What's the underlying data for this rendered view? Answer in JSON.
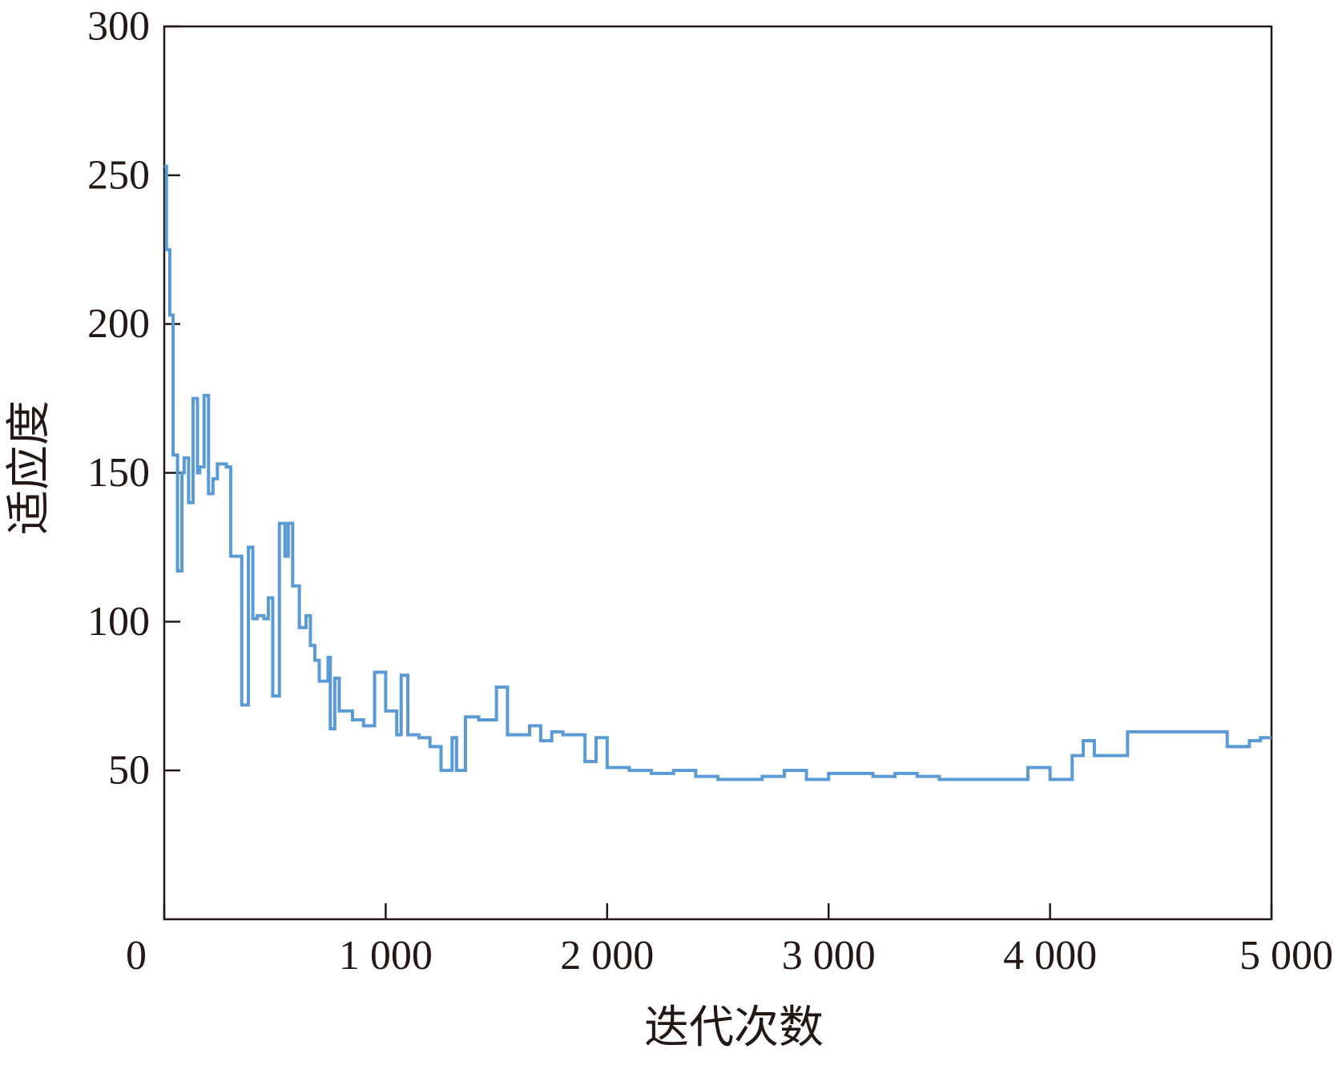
{
  "chart_data": {
    "type": "line",
    "title": "",
    "xlabel": "迭代次数",
    "ylabel": "适应度",
    "xlim": [
      0,
      5000
    ],
    "ylim": [
      0,
      300
    ],
    "x_ticks": [
      {
        "value": 0,
        "label": "0"
      },
      {
        "value": 1000,
        "label": "1 000"
      },
      {
        "value": 2000,
        "label": "2 000"
      },
      {
        "value": 3000,
        "label": "3 000"
      },
      {
        "value": 4000,
        "label": "4 000"
      },
      {
        "value": 5000,
        "label": "5 000"
      }
    ],
    "y_ticks": [
      {
        "value": 50,
        "label": "50"
      },
      {
        "value": 100,
        "label": "100"
      },
      {
        "value": 150,
        "label": "150"
      },
      {
        "value": 200,
        "label": "200"
      },
      {
        "value": 250,
        "label": "250"
      },
      {
        "value": 300,
        "label": "300"
      }
    ],
    "grid": false,
    "colors": {
      "series": "#5b9bd5",
      "axis": "#231815"
    },
    "series": [
      {
        "x": [
          0,
          10,
          25,
          40,
          40,
          60,
          80,
          90,
          110,
          130,
          150,
          160,
          180,
          200,
          220,
          240,
          260,
          280,
          300,
          350,
          380,
          400,
          420,
          450,
          470,
          490,
          520,
          545,
          560,
          580,
          610,
          640,
          660,
          680,
          700,
          740,
          750,
          770,
          790,
          810,
          850,
          900,
          950,
          1000,
          1050,
          1070,
          1100,
          1150,
          1200,
          1250,
          1300,
          1320,
          1360,
          1420,
          1500,
          1550,
          1600,
          1650,
          1700,
          1750,
          1800,
          1850,
          1900,
          1950,
          2000,
          2100,
          2200,
          2300,
          2400,
          2500,
          2600,
          2700,
          2800,
          2900,
          3000,
          3100,
          3200,
          3300,
          3400,
          3500,
          3600,
          3700,
          3800,
          3900,
          4000,
          4100,
          4150,
          4200,
          4300,
          4350,
          4400,
          4500,
          4600,
          4700,
          4800,
          4900,
          4950,
          5000
        ],
        "y": [
          253,
          225,
          203,
          156,
          156,
          117,
          150,
          155,
          140,
          175,
          150,
          152,
          176,
          143,
          148,
          153,
          153,
          152,
          122,
          72,
          125,
          101,
          102,
          101,
          108,
          75,
          133,
          122,
          133,
          112,
          98,
          102,
          92,
          87,
          80,
          88,
          64,
          81,
          70,
          70,
          67,
          65,
          83,
          70,
          62,
          82,
          62,
          61,
          58,
          50,
          61,
          50,
          68,
          67,
          78,
          62,
          62,
          65,
          60,
          63,
          62,
          62,
          53,
          61,
          51,
          50,
          49,
          50,
          48,
          47,
          47,
          48,
          50,
          47,
          49,
          49,
          48,
          49,
          48,
          47,
          47,
          47,
          47,
          51,
          47,
          55,
          60,
          55,
          55,
          63,
          63,
          63,
          63,
          63,
          58,
          60,
          61,
          61
        ]
      }
    ]
  }
}
